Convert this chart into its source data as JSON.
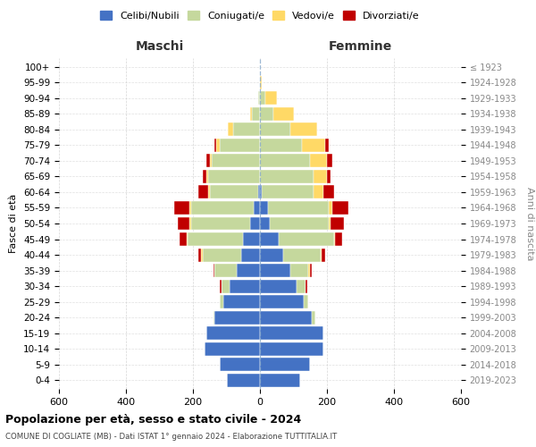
{
  "age_groups": [
    "0-4",
    "5-9",
    "10-14",
    "15-19",
    "20-24",
    "25-29",
    "30-34",
    "35-39",
    "40-44",
    "45-49",
    "50-54",
    "55-59",
    "60-64",
    "65-69",
    "70-74",
    "75-79",
    "80-84",
    "85-89",
    "90-94",
    "95-99",
    "100+"
  ],
  "birth_years": [
    "2019-2023",
    "2014-2018",
    "2009-2013",
    "2004-2008",
    "1999-2003",
    "1994-1998",
    "1989-1993",
    "1984-1988",
    "1979-1983",
    "1974-1978",
    "1969-1973",
    "1964-1968",
    "1959-1963",
    "1954-1958",
    "1949-1953",
    "1944-1948",
    "1939-1943",
    "1934-1938",
    "1929-1933",
    "1924-1928",
    "≤ 1923"
  ],
  "male": {
    "celibi": [
      100,
      120,
      165,
      160,
      135,
      110,
      90,
      70,
      55,
      50,
      30,
      20,
      5,
      0,
      0,
      0,
      0,
      0,
      0,
      0,
      0
    ],
    "coniugati": [
      0,
      0,
      0,
      0,
      5,
      10,
      25,
      65,
      115,
      165,
      175,
      185,
      145,
      155,
      145,
      120,
      80,
      25,
      5,
      0,
      0
    ],
    "vedovi": [
      0,
      0,
      0,
      0,
      0,
      0,
      0,
      0,
      5,
      5,
      5,
      5,
      5,
      5,
      5,
      10,
      15,
      5,
      0,
      0,
      0
    ],
    "divorziati": [
      0,
      0,
      0,
      0,
      0,
      0,
      5,
      5,
      10,
      20,
      35,
      45,
      30,
      10,
      10,
      5,
      0,
      0,
      0,
      0,
      0
    ]
  },
  "female": {
    "nubili": [
      120,
      150,
      190,
      190,
      155,
      130,
      110,
      90,
      70,
      55,
      30,
      25,
      5,
      0,
      0,
      0,
      0,
      0,
      0,
      0,
      0
    ],
    "coniugate": [
      0,
      0,
      0,
      0,
      10,
      15,
      25,
      55,
      110,
      165,
      175,
      180,
      155,
      160,
      150,
      125,
      90,
      40,
      15,
      0,
      0
    ],
    "vedove": [
      0,
      0,
      0,
      0,
      0,
      0,
      0,
      5,
      5,
      5,
      5,
      10,
      30,
      40,
      50,
      70,
      80,
      60,
      35,
      5,
      0
    ],
    "divorziate": [
      0,
      0,
      0,
      0,
      0,
      0,
      5,
      5,
      10,
      20,
      40,
      50,
      30,
      10,
      15,
      10,
      0,
      0,
      0,
      0,
      0
    ]
  },
  "colors": {
    "celibi": "#4472C4",
    "coniugati": "#C5D89D",
    "vedovi": "#FFD966",
    "divorziati": "#C00000"
  },
  "xlim": 600,
  "title": "Popolazione per età, sesso e stato civile - 2024",
  "subtitle": "COMUNE DI COGLIATE (MB) - Dati ISTAT 1° gennaio 2024 - Elaborazione TUTTITALIA.IT",
  "ylabel_left": "Fasce di età",
  "ylabel_right": "Anni di nascita",
  "xlabel_left": "Maschi",
  "xlabel_right": "Femmine",
  "bg_color": "#ffffff",
  "grid_color": "#cccccc"
}
